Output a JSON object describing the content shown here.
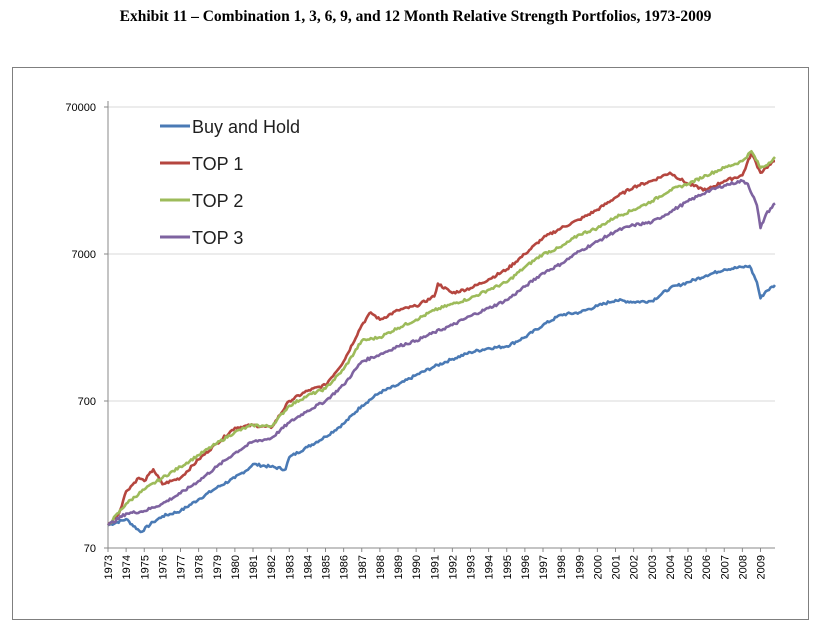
{
  "page": {
    "title": "Exhibit 11 – Combination 1, 3, 6, 9, and 12 Month Relative Strength Portfolios, 1973-2009"
  },
  "chart_data": {
    "type": "line",
    "title": "Exhibit 11 – Combination 1, 3, 6, 9, and 12 Month Relative Strength Portfolios, 1973-2009",
    "xlabel": "",
    "ylabel": "",
    "yscale": "log",
    "ylim": [
      70,
      70000
    ],
    "xlim": [
      1973,
      2009.8
    ],
    "y_ticks": [
      70,
      700,
      7000,
      70000
    ],
    "y_tick_labels": [
      "70",
      "700",
      "7000",
      "70000"
    ],
    "x_tick_labels": [
      "1973",
      "1974",
      "1975",
      "1976",
      "1977",
      "1978",
      "1979",
      "1980",
      "1981",
      "1982",
      "1983",
      "1984",
      "1985",
      "1986",
      "1987",
      "1988",
      "1989",
      "1990",
      "1991",
      "1992",
      "1993",
      "1994",
      "1995",
      "1996",
      "1997",
      "1998",
      "1999",
      "2000",
      "2001",
      "2002",
      "2003",
      "2004",
      "2005",
      "2006",
      "2007",
      "2008",
      "2009"
    ],
    "grid": "horizontal",
    "legend_position": "top-left",
    "series": [
      {
        "name": "Buy and Hold",
        "color": "#4a7ab5",
        "x": [
          1973,
          1974,
          1974.8,
          1975.5,
          1976,
          1977,
          1978,
          1979,
          1980,
          1980.8,
          1981,
          1982,
          1982.8,
          1983,
          1984,
          1985,
          1986,
          1987,
          1988,
          1989,
          1990,
          1991,
          1992,
          1993,
          1994,
          1995,
          1996,
          1997,
          1998,
          1999,
          2000,
          2001,
          2002,
          2003,
          2004,
          2005,
          2006,
          2007,
          2008,
          2008.4,
          2008.8,
          2009,
          2009.3,
          2009.8
        ],
        "values": [
          100,
          110,
          90,
          105,
          115,
          125,
          150,
          180,
          210,
          245,
          260,
          250,
          240,
          290,
          340,
          400,
          490,
          650,
          800,
          900,
          1050,
          1200,
          1350,
          1500,
          1600,
          1650,
          1900,
          2300,
          2700,
          2800,
          3100,
          3400,
          3300,
          3350,
          4100,
          4500,
          5000,
          5500,
          5700,
          5800,
          4500,
          3500,
          3900,
          4300
        ]
      },
      {
        "name": "TOP 1",
        "color": "#b5463f",
        "x": [
          1973,
          1973.6,
          1974,
          1974.7,
          1975,
          1975.5,
          1976,
          1976.5,
          1977,
          1978,
          1979,
          1980,
          1981,
          1982,
          1983,
          1984,
          1985,
          1986,
          1987,
          1987.5,
          1988,
          1989,
          1990,
          1991,
          1991.2,
          1992,
          1993,
          1994,
          1995,
          1996,
          1997,
          1998,
          1999,
          2000,
          2001,
          2002,
          2003,
          2004,
          2005,
          2006,
          2007,
          2008,
          2008.5,
          2009,
          2009.3,
          2009.8
        ],
        "values": [
          100,
          120,
          170,
          210,
          200,
          240,
          190,
          200,
          210,
          280,
          360,
          460,
          480,
          460,
          700,
          820,
          900,
          1300,
          2300,
          2800,
          2500,
          2900,
          3100,
          3600,
          4400,
          3800,
          4100,
          4700,
          5500,
          7000,
          9000,
          10500,
          12000,
          14000,
          17000,
          20000,
          22000,
          25000,
          21000,
          19000,
          22000,
          24000,
          34000,
          25000,
          27000,
          30000
        ]
      },
      {
        "name": "TOP 2",
        "color": "#9dbb5a",
        "x": [
          1973,
          1974,
          1975,
          1976,
          1977,
          1978,
          1979,
          1980,
          1981,
          1982,
          1983,
          1984,
          1985,
          1986,
          1987,
          1988,
          1989,
          1990,
          1991,
          1992,
          1993,
          1994,
          1995,
          1996,
          1997,
          1998,
          1999,
          2000,
          2001,
          2002,
          2003,
          2004,
          2005,
          2006,
          2007,
          2008,
          2008.5,
          2009,
          2009.3,
          2009.8
        ],
        "values": [
          100,
          140,
          175,
          210,
          250,
          300,
          360,
          430,
          480,
          470,
          650,
          760,
          850,
          1150,
          1800,
          1900,
          2200,
          2500,
          2900,
          3200,
          3500,
          4000,
          4500,
          5700,
          7000,
          7800,
          9500,
          10500,
          12500,
          14000,
          16000,
          19000,
          21000,
          24000,
          27000,
          30000,
          35000,
          27000,
          28000,
          32000
        ]
      },
      {
        "name": "TOP 3",
        "color": "#7e63a0",
        "x": [
          1973,
          1974,
          1975,
          1976,
          1977,
          1978,
          1979,
          1980,
          1981,
          1982,
          1983,
          1984,
          1985,
          1986,
          1987,
          1988,
          1989,
          1990,
          1991,
          1992,
          1993,
          1994,
          1995,
          1996,
          1997,
          1998,
          1999,
          2000,
          2001,
          2002,
          2003,
          2004,
          2005,
          2006,
          2007,
          2008,
          2008.3,
          2008.8,
          2009,
          2009.3,
          2009.8
        ],
        "values": [
          100,
          120,
          125,
          140,
          165,
          200,
          250,
          310,
          370,
          390,
          500,
          600,
          700,
          900,
          1300,
          1450,
          1650,
          1800,
          2050,
          2300,
          2650,
          3000,
          3400,
          4200,
          5200,
          6000,
          7300,
          8500,
          10000,
          11000,
          11500,
          13500,
          16000,
          18500,
          20500,
          22000,
          21000,
          15000,
          10500,
          13000,
          15500
        ]
      }
    ]
  }
}
